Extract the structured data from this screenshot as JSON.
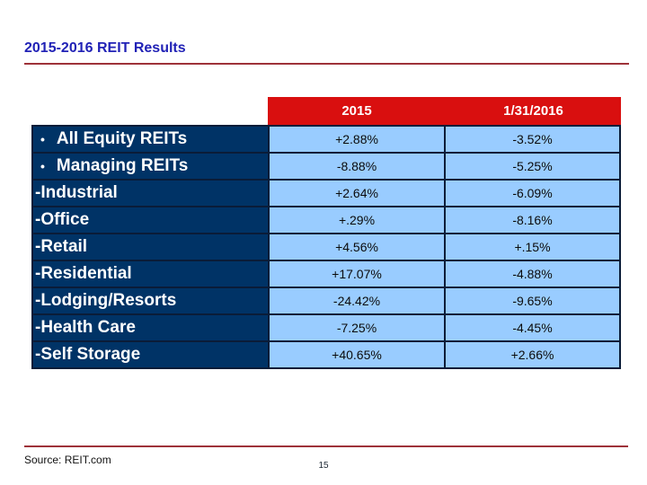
{
  "slide": {
    "title": "2015-2016 REIT Results",
    "footer": {
      "source": "Source: REIT.com",
      "page_number": "15"
    }
  },
  "table": {
    "column_headers": [
      "2015",
      "1/31/2016"
    ],
    "rows": [
      {
        "bullet": "•",
        "label": "All Equity REITs",
        "values": [
          "+2.88%",
          "-3.52%"
        ]
      },
      {
        "bullet": "•",
        "label": "Managing REITs",
        "values": [
          "-8.88%",
          "-5.25%"
        ]
      },
      {
        "bullet": "",
        "label": "-Industrial",
        "values": [
          "+2.64%",
          "-6.09%"
        ]
      },
      {
        "bullet": "",
        "label": "-Office",
        "values": [
          "+.29%",
          "-8.16%"
        ]
      },
      {
        "bullet": "",
        "label": "-Retail",
        "values": [
          "+4.56%",
          "+.15%"
        ]
      },
      {
        "bullet": "",
        "label": "-Residential",
        "values": [
          "+17.07%",
          "-4.88%"
        ]
      },
      {
        "bullet": "",
        "label": "-Lodging/Resorts",
        "values": [
          "-24.42%",
          "-9.65%"
        ]
      },
      {
        "bullet": "",
        "label": "-Health Care",
        "values": [
          "-7.25%",
          "-4.45%"
        ]
      },
      {
        "bullet": "",
        "label": "-Self Storage",
        "values": [
          "+40.65%",
          "+2.66%"
        ]
      }
    ]
  },
  "colors": {
    "header_bg": "#d90f0f",
    "label_column_bg": "#003366",
    "value_cell_bg": "#99ccff",
    "grid_line": "#0a1c38",
    "title_text": "#2122b6",
    "rule_red": "#9e3239",
    "header_text": "#ffffff",
    "label_text": "#ffffff",
    "value_text": "#0b0b0b"
  }
}
